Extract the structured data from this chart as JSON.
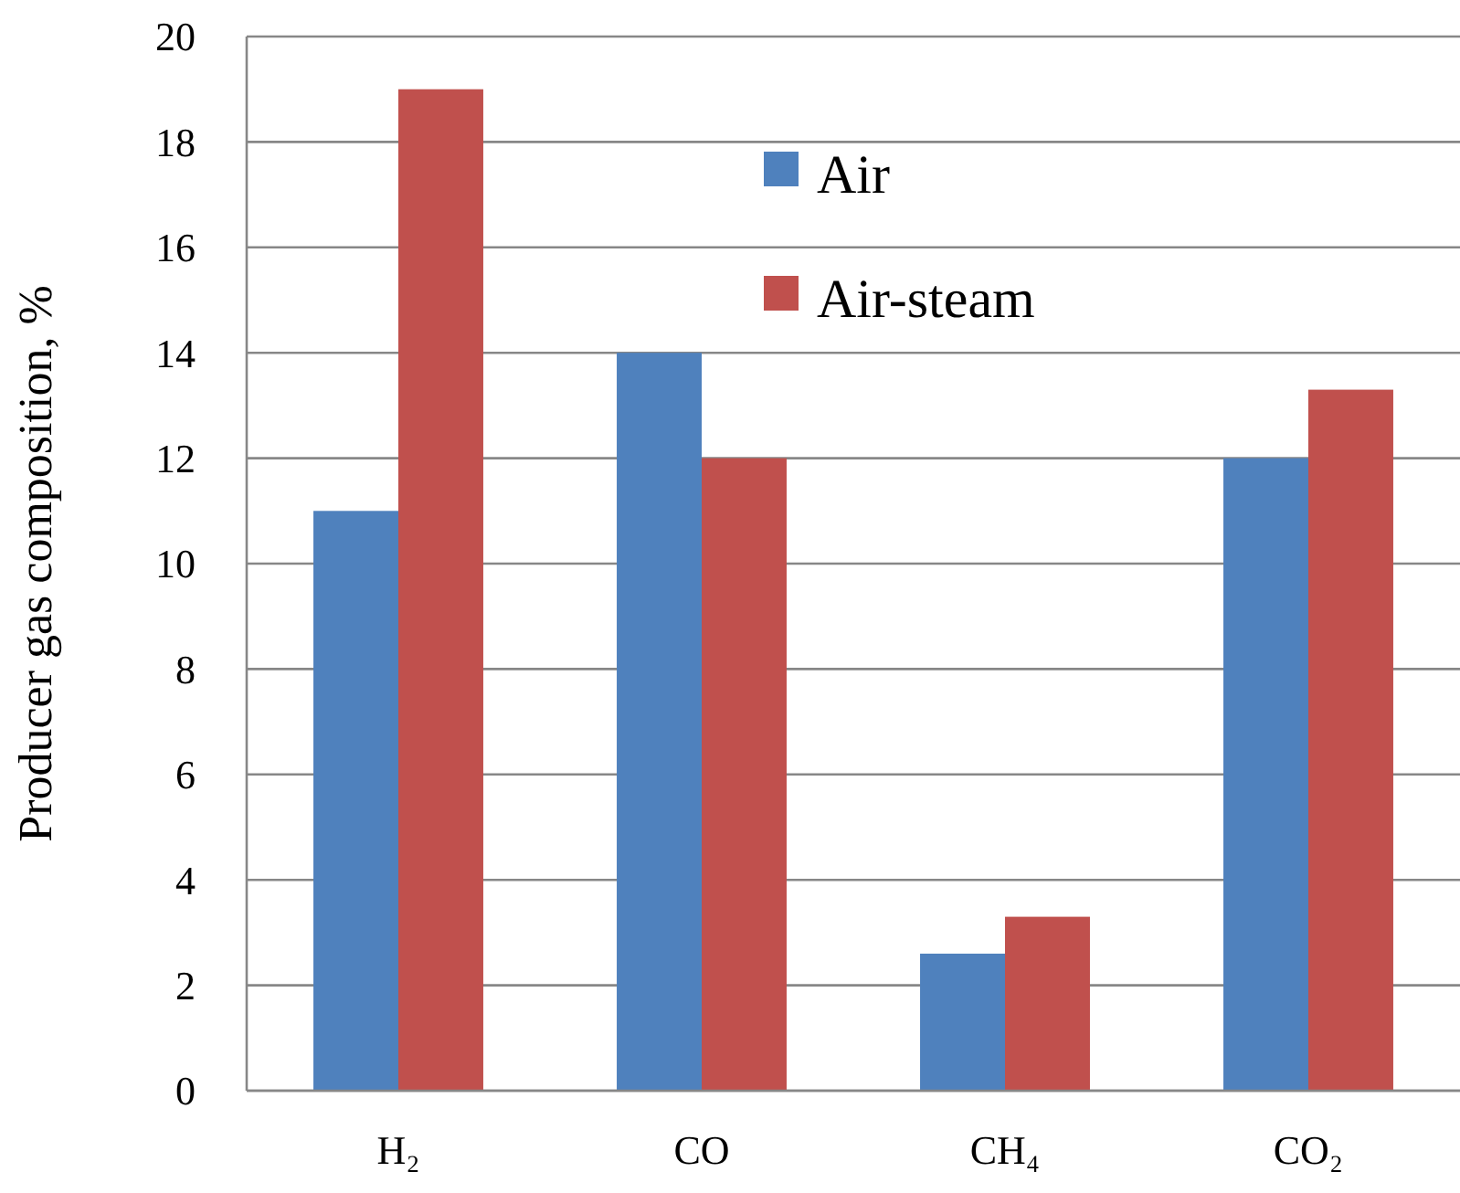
{
  "chart_data": {
    "type": "bar",
    "ylabel": "Producer gas composition, %",
    "categories": [
      "H₂",
      "CO",
      "CH₄",
      "CO₂"
    ],
    "series": [
      {
        "name": "Air",
        "color": "#4f81bd",
        "values": [
          11,
          14,
          2.6,
          12
        ]
      },
      {
        "name": "Air-steam",
        "color": "#c0504d",
        "values": [
          19,
          12,
          3.3,
          13.3
        ]
      }
    ],
    "ylim": [
      0,
      20
    ],
    "yticks": [
      0,
      2,
      4,
      6,
      8,
      10,
      12,
      14,
      16,
      18,
      20
    ],
    "grid": "y",
    "legend": "top"
  }
}
